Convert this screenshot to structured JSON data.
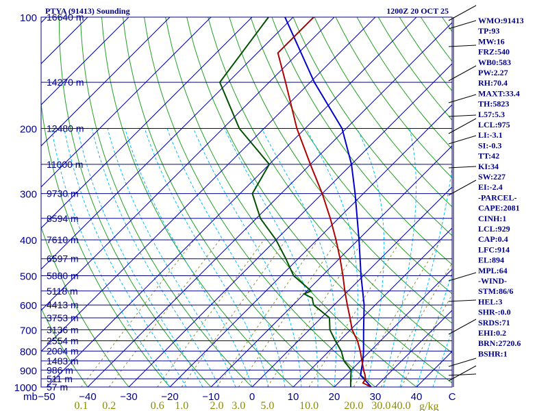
{
  "chart_data": {
    "type": "skew-t sounding",
    "title": "PTYA (91413) Sounding",
    "valid_time": "1200Z 20 OCT 25",
    "pressure_axis_unit": "mb",
    "pressure_levels_labeled": [
      100,
      200,
      300,
      400,
      500,
      600,
      700,
      800,
      900,
      1000
    ],
    "temperature_ticks": [
      -50,
      -40,
      -30,
      -20,
      -10,
      0,
      10,
      20,
      30,
      40
    ],
    "temperature_tick_labels": [
      "−50",
      "−40",
      "−30",
      "−20",
      "−10",
      "0",
      "10",
      "20",
      "30",
      "40",
      "C"
    ],
    "mixing_ratio_unit": "g/kg",
    "mixing_ratio_ticks": [
      "0.1",
      "0.2",
      "0.6",
      "1.0",
      "2.0",
      "3.0",
      "5.0",
      "10.0",
      "20.0",
      "30.0",
      "40.0"
    ],
    "height_labels": [
      {
        "p": 100,
        "label": "16640 m"
      },
      {
        "p": 150,
        "label": "14270 m"
      },
      {
        "p": 200,
        "label": "12480 m"
      },
      {
        "p": 250,
        "label": "11000 m"
      },
      {
        "p": 300,
        "label": "9730 m"
      },
      {
        "p": 350,
        "label": "8594 m"
      },
      {
        "p": 400,
        "label": "7610 m"
      },
      {
        "p": 450,
        "label": "6597 m"
      },
      {
        "p": 500,
        "label": "5880 m"
      },
      {
        "p": 550,
        "label": "5118 m"
      },
      {
        "p": 600,
        "label": "4413 m"
      },
      {
        "p": 650,
        "label": "3753 m"
      },
      {
        "p": 700,
        "label": "3136 m"
      },
      {
        "p": 750,
        "label": "2554 m"
      },
      {
        "p": 800,
        "label": "2004 m"
      },
      {
        "p": 850,
        "label": "1483 m"
      },
      {
        "p": 900,
        "label": "986 m"
      },
      {
        "p": 950,
        "label": "511 m"
      },
      {
        "p": 1000,
        "label": "57 m"
      }
    ],
    "temperature_profile": [
      {
        "p": 1000,
        "t": 29
      },
      {
        "p": 975,
        "t": 26
      },
      {
        "p": 950,
        "t": 25.6
      },
      {
        "p": 925,
        "t": 24.4
      },
      {
        "p": 900,
        "t": 23
      },
      {
        "p": 850,
        "t": 20.4
      },
      {
        "p": 800,
        "t": 17.6
      },
      {
        "p": 750,
        "t": 14.4
      },
      {
        "p": 700,
        "t": 10.4
      },
      {
        "p": 650,
        "t": 7
      },
      {
        "p": 600,
        "t": 3.2
      },
      {
        "p": 550,
        "t": -0.8
      },
      {
        "p": 500,
        "t": -5
      },
      {
        "p": 450,
        "t": -9.8
      },
      {
        "p": 400,
        "t": -15.4
      },
      {
        "p": 350,
        "t": -22
      },
      {
        "p": 300,
        "t": -30
      },
      {
        "p": 250,
        "t": -40
      },
      {
        "p": 200,
        "t": -52
      },
      {
        "p": 150,
        "t": -66
      },
      {
        "p": 125,
        "t": -75
      },
      {
        "p": 100,
        "t": -75
      }
    ],
    "dewpoint_profile": [
      {
        "p": 1000,
        "t": 24
      },
      {
        "p": 975,
        "t": 23
      },
      {
        "p": 950,
        "t": 22
      },
      {
        "p": 925,
        "t": 21
      },
      {
        "p": 900,
        "t": 20
      },
      {
        "p": 850,
        "t": 16
      },
      {
        "p": 800,
        "t": 13
      },
      {
        "p": 750,
        "t": 9
      },
      {
        "p": 700,
        "t": 5
      },
      {
        "p": 650,
        "t": 2
      },
      {
        "p": 600,
        "t": -5
      },
      {
        "p": 575,
        "t": -7
      },
      {
        "p": 560,
        "t": -10
      },
      {
        "p": 550,
        "t": -9
      },
      {
        "p": 500,
        "t": -17
      },
      {
        "p": 450,
        "t": -23
      },
      {
        "p": 400,
        "t": -30
      },
      {
        "p": 350,
        "t": -39
      },
      {
        "p": 300,
        "t": -47
      },
      {
        "p": 250,
        "t": -50
      },
      {
        "p": 200,
        "t": -66
      },
      {
        "p": 150,
        "t": -82
      },
      {
        "p": 100,
        "t": -86
      }
    ],
    "parcel_profile": [
      {
        "p": 1000,
        "t": 29
      },
      {
        "p": 929,
        "t": 23.5
      },
      {
        "p": 850,
        "t": 20.6
      },
      {
        "p": 800,
        "t": 18.4
      },
      {
        "p": 700,
        "t": 13.2
      },
      {
        "p": 600,
        "t": 7.3
      },
      {
        "p": 500,
        "t": -0.6
      },
      {
        "p": 400,
        "t": -9.8
      },
      {
        "p": 300,
        "t": -22
      },
      {
        "p": 250,
        "t": -30
      },
      {
        "p": 200,
        "t": -41
      },
      {
        "p": 150,
        "t": -59
      },
      {
        "p": 100,
        "t": -82
      }
    ],
    "stability_indices": [
      "WMO:91413",
      "TP:93",
      "MW:16",
      "FRZ:540",
      "WB0:583",
      "PW:2.27",
      "RH:70.4",
      "MAXT:33.4",
      "TH:5823",
      "L57:5.3",
      "LCL:975",
      "LI:-3.1",
      "SI:-0.3",
      "TT:42",
      "KI:34",
      "SW:227",
      "EI:-2.4",
      "-PARCEL-",
      "CAPE:2081",
      "CINH:1",
      "LCL:929",
      "CAP:0.4",
      "LFC:914",
      "EL:894",
      "MPL:64",
      "-WIND-",
      "STM:86/6",
      "HEL:3",
      "SHR-:0.0",
      "SRDS:71",
      "EHI:0.2",
      "BRN:2720.6",
      "BSHR:1"
    ]
  },
  "colors": {
    "axis": "#00008b",
    "isotherm": "#00008b",
    "dry_adiabat": "#22a022",
    "moist_adiabat": "#00bfff",
    "mixing_ratio": "#8b8b3a",
    "temperature": "#b00000",
    "dewpoint": "#005000",
    "parcel": "#0000cc",
    "mixing_ratio_label": "#8b8b00"
  }
}
